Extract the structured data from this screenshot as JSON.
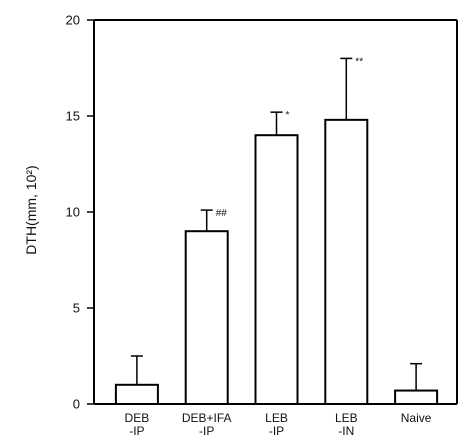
{
  "chart_data": {
    "type": "bar",
    "categories": [
      [
        "DEB",
        "-IP"
      ],
      [
        "DEB+IFA",
        "-IP"
      ],
      [
        "LEB",
        "-IP"
      ],
      [
        "LEB",
        "-IN"
      ],
      [
        "Naive"
      ]
    ],
    "values": [
      1.0,
      9.0,
      14.0,
      14.8,
      0.7
    ],
    "error_upper": [
      2.5,
      10.1,
      15.2,
      18.0,
      2.1
    ],
    "annotations": [
      "",
      "##",
      "*",
      "**",
      ""
    ],
    "ylabel": "DTH(mm, 10²)",
    "ylim": [
      0,
      20
    ],
    "yticks": [
      0,
      5,
      10,
      15,
      20
    ],
    "grid": false,
    "colors": {
      "bar_fill": "#ffffff",
      "stroke": "#000000"
    }
  }
}
